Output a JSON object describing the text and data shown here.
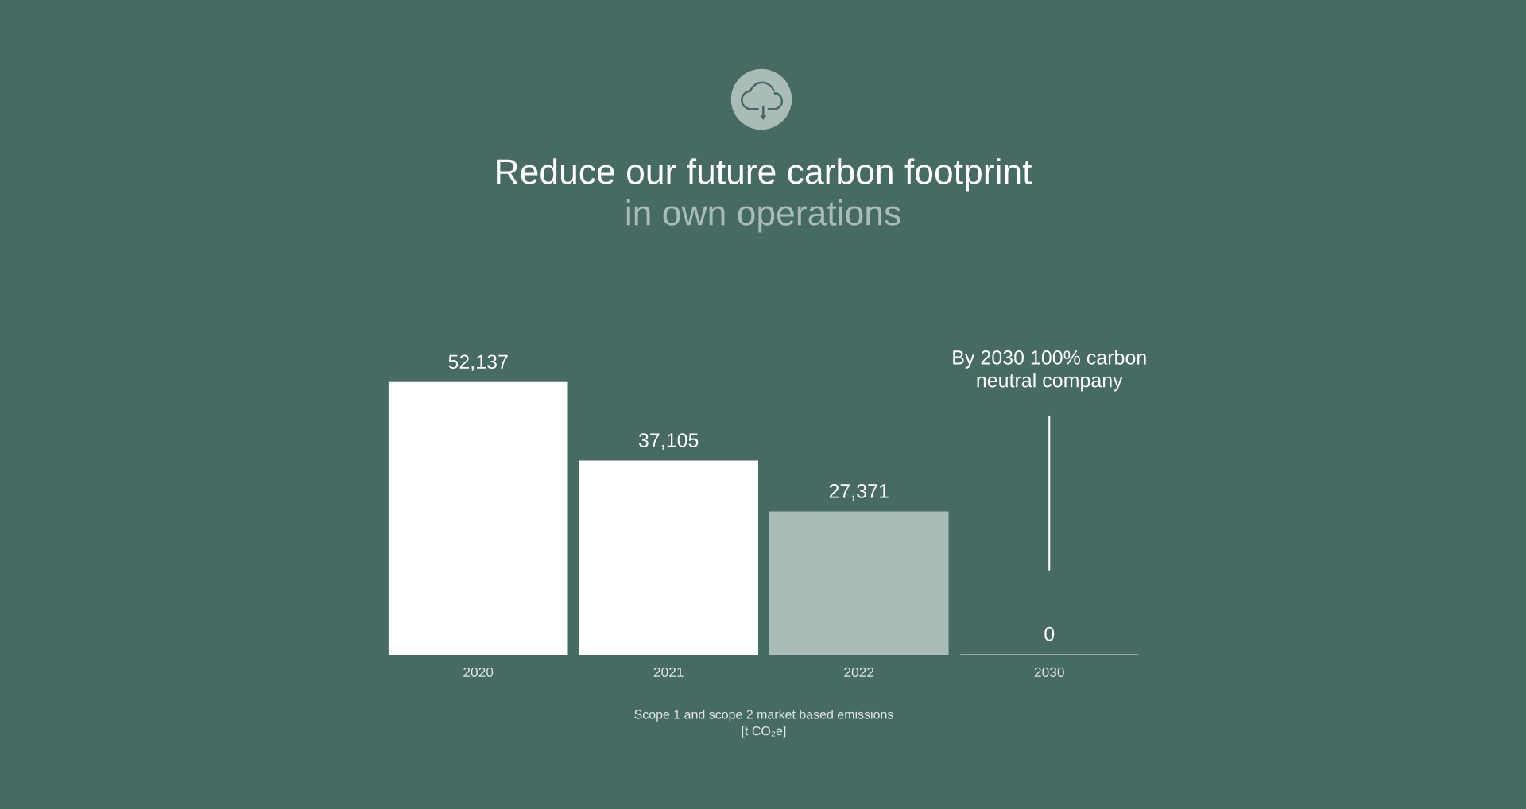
{
  "chart_data": {
    "type": "bar",
    "title": "Reduce our future carbon footprint",
    "subtitle": "in own operations",
    "xlabel": "Scope 1 and scope 2 market based emissions\n[t CO₂e]",
    "categories": [
      "2020",
      "2021",
      "2022",
      "2030"
    ],
    "values": [
      52137,
      37105,
      27371,
      0
    ],
    "colors": [
      "#ffffff",
      "#ffffff",
      "#a9bcb8",
      "#a9bcb8"
    ],
    "value_labels": [
      "52,137",
      "37,105",
      "27,371",
      "0"
    ],
    "annotations": [
      "By 2030 100% carbon\nneutral company"
    ],
    "tick_labels": "x"
  }
}
